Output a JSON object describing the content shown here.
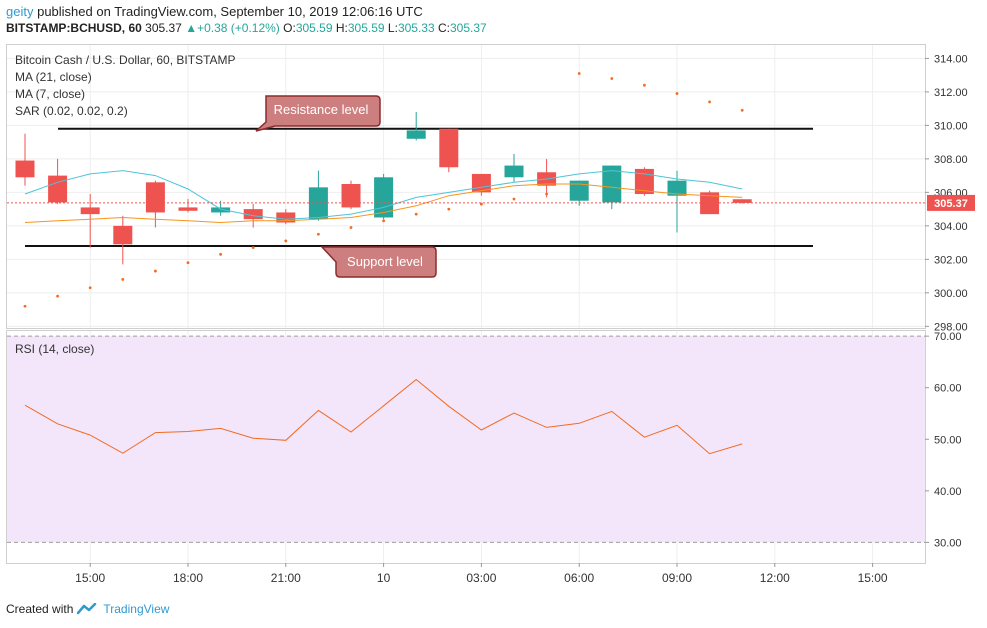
{
  "header": {
    "user": "geity",
    "published_text": "published on TradingView.com, September 10, 2019 12:06:16 UTC",
    "symbol": "BITSTAMP:BCHUSD, 60",
    "last": "305.37",
    "change": "+0.38 (+0.12%)",
    "o_label": "O:",
    "o": "305.59",
    "h_label": "H:",
    "h": "305.59",
    "l_label": "L:",
    "l": "305.33",
    "c_label": "C:",
    "c": "305.37"
  },
  "legend": {
    "title": "Bitcoin Cash / U.S. Dollar, 60, BITSTAMP",
    "ma21": "MA (21, close)",
    "ma7": "MA (7, close)",
    "sar": "SAR (0.02, 0.02, 0.2)",
    "rsi": "RSI (14, close)"
  },
  "annotations": {
    "resistance": "Resistance level",
    "support": "Support level"
  },
  "price_tag": "305.37",
  "footer": {
    "created_with": "Created with",
    "brand": "TradingView"
  },
  "colors": {
    "up": "#26a69a",
    "down": "#ef5350",
    "ma21": "#f7941d",
    "ma7": "#4ec3d9",
    "sar": "#f26b21",
    "rsi": "#f26b21",
    "rsi_band": "#f3e6fb",
    "callout_fill": "#cd7f7f",
    "callout_border": "#8b2c2c"
  },
  "chart_data": [
    {
      "type": "candlestick",
      "title": "Bitcoin Cash / U.S. Dollar, 60, BITSTAMP",
      "x_tick_labels": [
        "15:00",
        "18:00",
        "21:00",
        "10",
        "03:00",
        "06:00",
        "09:00",
        "12:00",
        "15:00"
      ],
      "y_tick_labels": [
        "298.00",
        "300.00",
        "302.00",
        "304.00",
        "306.00",
        "308.00",
        "310.00",
        "312.00",
        "314.00"
      ],
      "ylim": [
        297.9,
        314.8
      ],
      "resistance_level": 309.8,
      "support_level": 302.8,
      "candles": [
        {
          "o": 307.9,
          "h": 309.5,
          "l": 306.4,
          "c": 306.9
        },
        {
          "o": 307.0,
          "h": 308.0,
          "l": 305.3,
          "c": 305.4
        },
        {
          "o": 305.1,
          "h": 305.9,
          "l": 302.7,
          "c": 304.7
        },
        {
          "o": 304.0,
          "h": 304.6,
          "l": 301.7,
          "c": 302.9
        },
        {
          "o": 306.6,
          "h": 306.7,
          "l": 303.9,
          "c": 304.8
        },
        {
          "o": 305.1,
          "h": 305.6,
          "l": 304.8,
          "c": 304.9
        },
        {
          "o": 304.8,
          "h": 305.5,
          "l": 304.6,
          "c": 305.1
        },
        {
          "o": 305.0,
          "h": 305.3,
          "l": 303.9,
          "c": 304.4
        },
        {
          "o": 304.8,
          "h": 305.0,
          "l": 304.1,
          "c": 304.2
        },
        {
          "o": 304.4,
          "h": 307.3,
          "l": 304.3,
          "c": 306.3
        },
        {
          "o": 306.5,
          "h": 306.7,
          "l": 305.0,
          "c": 305.1
        },
        {
          "o": 304.5,
          "h": 307.1,
          "l": 304.4,
          "c": 306.9
        },
        {
          "o": 309.2,
          "h": 310.8,
          "l": 309.1,
          "c": 309.7
        },
        {
          "o": 309.8,
          "h": 309.8,
          "l": 307.2,
          "c": 307.5
        },
        {
          "o": 307.1,
          "h": 307.1,
          "l": 305.8,
          "c": 306.0
        },
        {
          "o": 306.9,
          "h": 308.3,
          "l": 306.6,
          "c": 307.6
        },
        {
          "o": 307.2,
          "h": 308.0,
          "l": 305.7,
          "c": 306.4
        },
        {
          "o": 305.5,
          "h": 306.7,
          "l": 305.2,
          "c": 306.7
        },
        {
          "o": 305.4,
          "h": 307.6,
          "l": 305.0,
          "c": 307.6
        },
        {
          "o": 307.4,
          "h": 307.5,
          "l": 305.8,
          "c": 305.9
        },
        {
          "o": 305.8,
          "h": 307.3,
          "l": 303.6,
          "c": 306.7
        },
        {
          "o": 306.0,
          "h": 306.1,
          "l": 304.7,
          "c": 304.7
        },
        {
          "o": 305.59,
          "h": 305.59,
          "l": 305.33,
          "c": 305.37
        }
      ],
      "ma21": [
        305.9,
        306.6,
        307.1,
        307.3,
        307.0,
        306.2,
        305.0,
        304.6,
        304.4,
        304.5,
        304.7,
        305.1,
        305.7,
        306.0,
        306.3,
        306.6,
        306.8,
        307.1,
        307.3,
        307.1,
        306.8,
        306.6,
        306.2
      ],
      "ma7": [
        304.2,
        304.3,
        304.4,
        304.5,
        304.4,
        304.3,
        304.2,
        304.3,
        304.3,
        304.4,
        304.5,
        304.8,
        305.2,
        305.8,
        306.1,
        306.4,
        306.5,
        306.5,
        306.3,
        306.1,
        305.9,
        305.8,
        305.7
      ],
      "sar": [
        299.2,
        299.8,
        300.3,
        300.8,
        301.3,
        301.8,
        302.3,
        302.7,
        303.1,
        303.5,
        303.9,
        304.3,
        304.7,
        305.0,
        305.3,
        305.6,
        305.9,
        313.1,
        312.8,
        312.4,
        311.9,
        311.4,
        310.9
      ]
    },
    {
      "type": "line",
      "title": "RSI (14, close)",
      "y_tick_labels": [
        "30.00",
        "40.00",
        "50.00",
        "60.00",
        "70.00"
      ],
      "ylim": [
        26.0,
        71.0
      ],
      "band": [
        30,
        70
      ],
      "values": [
        56.6,
        53.0,
        50.8,
        47.3,
        51.3,
        51.5,
        52.1,
        50.2,
        49.8,
        55.6,
        51.4,
        56.5,
        61.6,
        56.4,
        51.8,
        55.1,
        52.3,
        53.1,
        55.4,
        50.4,
        52.7,
        47.2,
        49.1
      ]
    }
  ]
}
